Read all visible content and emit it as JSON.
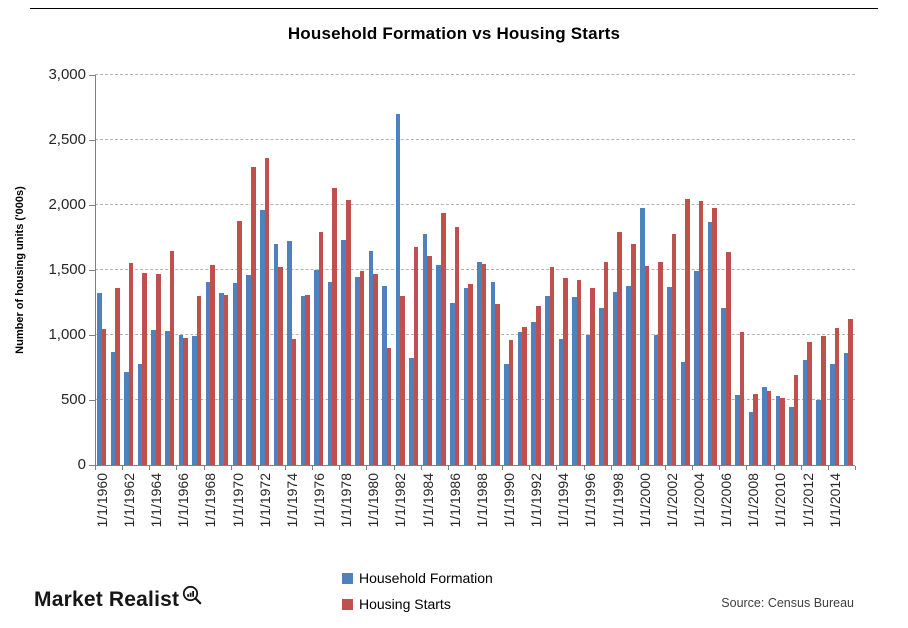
{
  "page": {
    "brand": "Market Realist",
    "brand_icon": "magnifier-bar-chart-icon",
    "source": "Source: Census Bureau"
  },
  "chart_data": {
    "type": "bar",
    "title": "Household Formation vs Housing Starts",
    "xlabel": "",
    "ylabel": "Number of housing units ('000s)",
    "ylim": [
      0,
      3000
    ],
    "ytick_step": 500,
    "ytick_labels": [
      "0",
      "500",
      "1,000",
      "1,500",
      "2,000",
      "2,500",
      "3,000"
    ],
    "grid": "horizontal-dashed",
    "legend_position": "bottom-center",
    "x_tick_labels": [
      "1/1/1960",
      "1/1/1962",
      "1/1/1964",
      "1/1/1966",
      "1/1/1968",
      "1/1/1970",
      "1/1/1972",
      "1/1/1974",
      "1/1/1976",
      "1/1/1978",
      "1/1/1980",
      "1/1/1982",
      "1/1/1984",
      "1/1/1986",
      "1/1/1988",
      "1/1/1990",
      "1/1/1992",
      "1/1/1994",
      "1/1/1996",
      "1/1/1998",
      "1/1/2000",
      "1/1/2002",
      "1/1/2004",
      "1/1/2006",
      "1/1/2008",
      "1/1/2010",
      "1/1/2012",
      "1/1/2014"
    ],
    "x_tick_label_rotation": -90,
    "categories": [
      1960,
      1961,
      1962,
      1963,
      1964,
      1965,
      1966,
      1967,
      1968,
      1969,
      1970,
      1971,
      1972,
      1973,
      1974,
      1975,
      1976,
      1977,
      1978,
      1979,
      1980,
      1981,
      1982,
      1983,
      1984,
      1985,
      1986,
      1987,
      1988,
      1989,
      1990,
      1991,
      1992,
      1993,
      1994,
      1995,
      1996,
      1997,
      1998,
      1999,
      2000,
      2001,
      2002,
      2003,
      2004,
      2005,
      2006,
      2007,
      2008,
      2009,
      2010,
      2011,
      2012,
      2013,
      2014,
      2015
    ],
    "series": [
      {
        "name": "Household Formation",
        "color": "#4F81BD",
        "values": [
          1320,
          870,
          715,
          775,
          1040,
          1030,
          1000,
          990,
          1410,
          1320,
          1400,
          1460,
          1960,
          1700,
          1720,
          1300,
          1500,
          1410,
          1730,
          1450,
          1650,
          1380,
          2700,
          820,
          1780,
          1540,
          1250,
          1360,
          1560,
          1410,
          780,
          1020,
          1100,
          1300,
          970,
          1290,
          1000,
          1210,
          1330,
          1380,
          1980,
          1000,
          1370,
          790,
          1490,
          1870,
          1210,
          535,
          410,
          600,
          530,
          445,
          810,
          500,
          775,
          860
        ]
      },
      {
        "name": "Housing Starts",
        "color": "#C0504D",
        "values": [
          1050,
          1360,
          1555,
          1480,
          1470,
          1650,
          980,
          1300,
          1540,
          1310,
          1880,
          2290,
          2360,
          1520,
          970,
          1310,
          1790,
          2130,
          2040,
          1490,
          1470,
          900,
          1300,
          1680,
          1610,
          1940,
          1830,
          1390,
          1550,
          1240,
          960,
          1060,
          1220,
          1520,
          1440,
          1420,
          1360,
          1560,
          1790,
          1700,
          1530,
          1560,
          1780,
          2050,
          2030,
          1980,
          1640,
          1020,
          545,
          570,
          515,
          690,
          950,
          990,
          1055,
          1125
        ]
      }
    ]
  }
}
